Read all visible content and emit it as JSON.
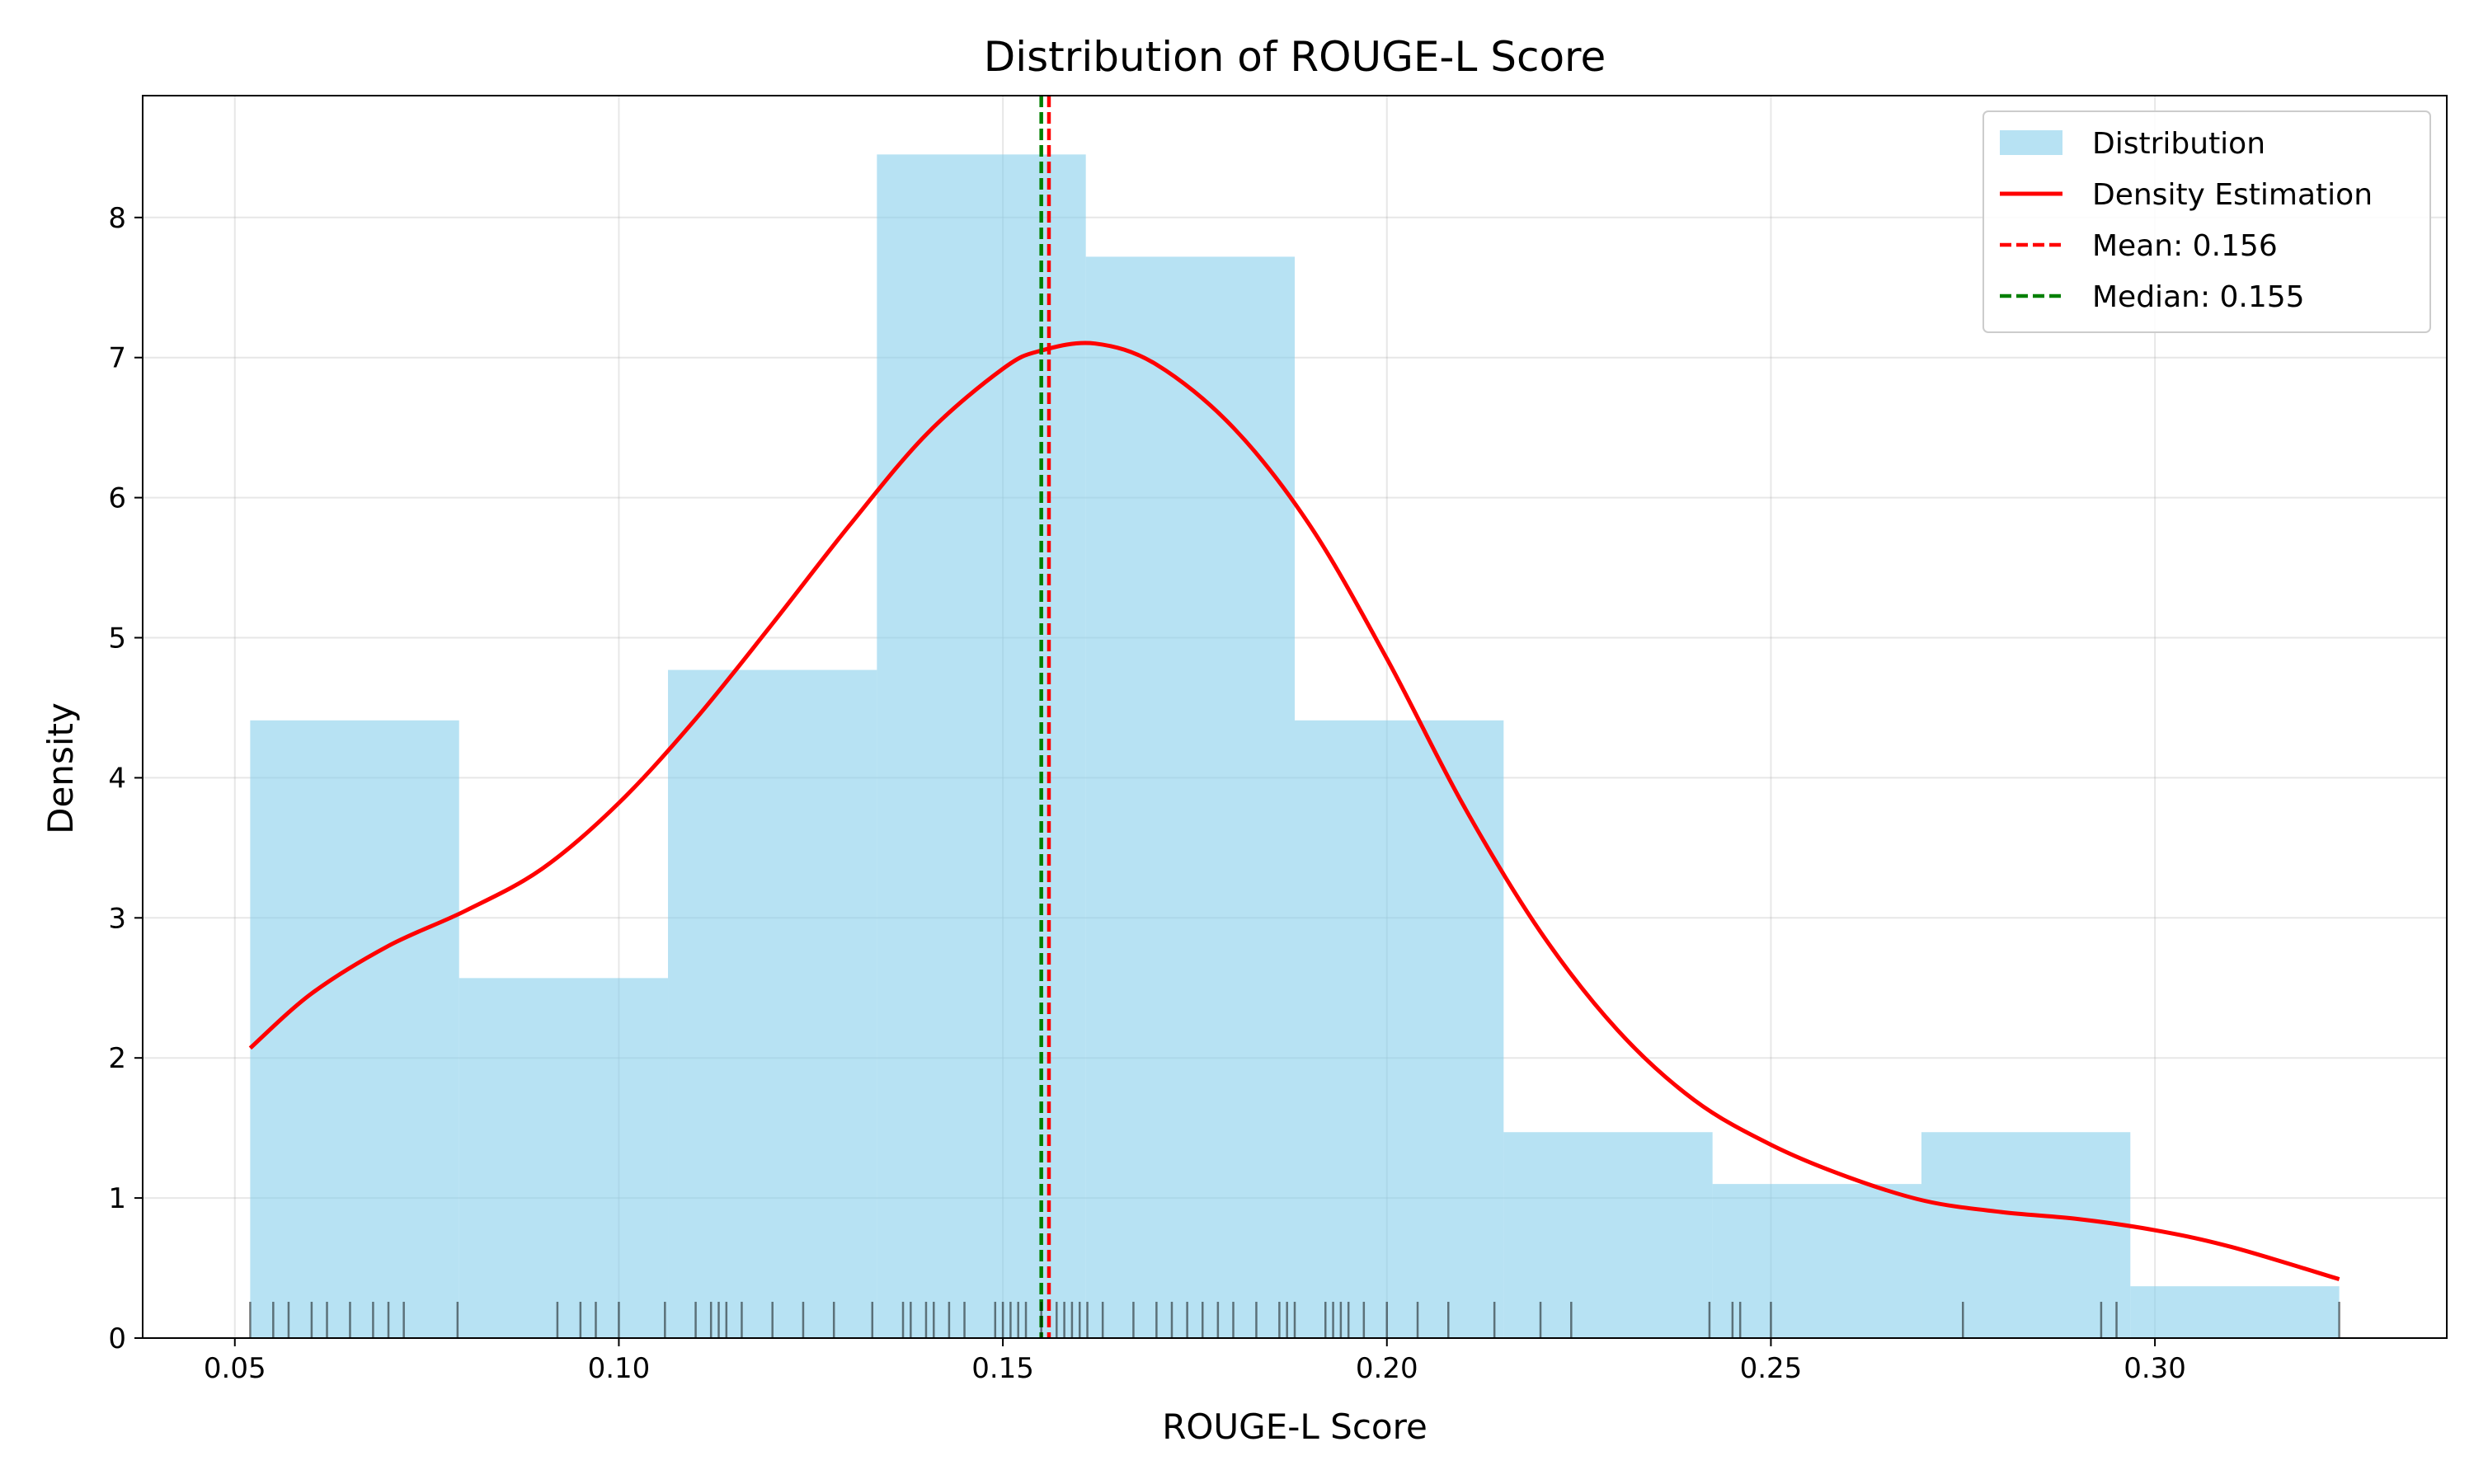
{
  "chart_data": {
    "type": "histogram",
    "title": "Distribution of ROUGE-L Score",
    "xlabel": "ROUGE-L Score",
    "ylabel": "Density",
    "xlim": [
      0.038,
      0.338
    ],
    "ylim": [
      0,
      8.87
    ],
    "xticks": [
      0.05,
      0.1,
      0.15,
      0.2,
      0.25,
      0.3
    ],
    "xtick_labels": [
      "0.05",
      "0.10",
      "0.15",
      "0.20",
      "0.25",
      "0.30"
    ],
    "yticks": [
      0,
      1,
      2,
      3,
      4,
      5,
      6,
      7,
      8
    ],
    "ytick_labels": [
      "0",
      "1",
      "2",
      "3",
      "4",
      "5",
      "6",
      "7",
      "8"
    ],
    "grid": true,
    "legend_position": "top-right",
    "colors": {
      "bars": "#87ceeb",
      "kde": "#ff0000",
      "mean": "#ff0000",
      "median": "#008000",
      "rug": "#000000"
    },
    "bins": {
      "edges": [
        0.052,
        0.0792,
        0.1064,
        0.1336,
        0.1608,
        0.188,
        0.2152,
        0.2424,
        0.2696,
        0.2968,
        0.324
      ],
      "density": [
        4.41,
        2.57,
        4.77,
        8.45,
        7.72,
        4.41,
        1.47,
        1.1,
        1.47,
        0.37
      ]
    },
    "kde": {
      "x": [
        0.052,
        0.06,
        0.07,
        0.08,
        0.09,
        0.1,
        0.11,
        0.12,
        0.13,
        0.14,
        0.15,
        0.155,
        0.162,
        0.17,
        0.18,
        0.19,
        0.2,
        0.21,
        0.22,
        0.23,
        0.24,
        0.25,
        0.26,
        0.27,
        0.28,
        0.29,
        0.3,
        0.31,
        0.324
      ],
      "y": [
        2.07,
        2.46,
        2.8,
        3.05,
        3.35,
        3.82,
        4.42,
        5.1,
        5.8,
        6.45,
        6.92,
        7.05,
        7.1,
        6.95,
        6.5,
        5.8,
        4.85,
        3.8,
        2.9,
        2.2,
        1.7,
        1.38,
        1.15,
        0.98,
        0.9,
        0.85,
        0.77,
        0.65,
        0.42
      ]
    },
    "mean": 0.156,
    "median": 0.155,
    "rug": [
      0.052,
      0.055,
      0.057,
      0.06,
      0.062,
      0.065,
      0.068,
      0.07,
      0.072,
      0.079,
      0.092,
      0.095,
      0.097,
      0.1,
      0.106,
      0.11,
      0.112,
      0.113,
      0.114,
      0.116,
      0.12,
      0.124,
      0.128,
      0.133,
      0.137,
      0.138,
      0.14,
      0.141,
      0.143,
      0.145,
      0.149,
      0.15,
      0.151,
      0.152,
      0.153,
      0.155,
      0.157,
      0.158,
      0.159,
      0.16,
      0.161,
      0.163,
      0.167,
      0.17,
      0.172,
      0.174,
      0.176,
      0.178,
      0.18,
      0.183,
      0.186,
      0.187,
      0.188,
      0.192,
      0.193,
      0.194,
      0.195,
      0.197,
      0.2,
      0.204,
      0.208,
      0.214,
      0.22,
      0.224,
      0.242,
      0.245,
      0.246,
      0.25,
      0.275,
      0.293,
      0.295,
      0.324
    ],
    "legend": [
      {
        "kind": "patch",
        "label": "Distribution"
      },
      {
        "kind": "line",
        "label": "Density Estimation"
      },
      {
        "kind": "dash-red",
        "label": "Mean: 0.156"
      },
      {
        "kind": "dash-green",
        "label": "Median: 0.155"
      }
    ]
  }
}
